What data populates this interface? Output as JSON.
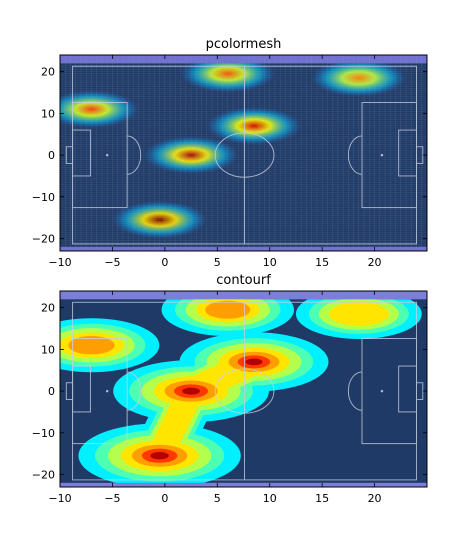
{
  "chart_data": [
    {
      "type": "heatmap",
      "title": "pcolormesh",
      "xlabel": "",
      "ylabel": "",
      "xlim": [
        -10,
        25
      ],
      "ylim": [
        -23,
        24
      ],
      "xticks": [
        -10,
        -5,
        0,
        5,
        10,
        15,
        20
      ],
      "yticks": [
        -20,
        -10,
        0,
        10,
        20
      ],
      "grid": false,
      "background_color": "#1f3a66",
      "outer_band_color": "#6f6fd0",
      "pitch_line_color": "#c8d0e0",
      "hotspots": [
        {
          "x": -0.5,
          "y": -15.5,
          "intensity": 1.0
        },
        {
          "x": 2.5,
          "y": 0.0,
          "intensity": 0.9
        },
        {
          "x": 8.5,
          "y": 7.0,
          "intensity": 0.8
        },
        {
          "x": 6.0,
          "y": 19.5,
          "intensity": 0.55
        },
        {
          "x": -7.0,
          "y": 11.0,
          "intensity": 0.6
        },
        {
          "x": 18.5,
          "y": 18.5,
          "intensity": 0.45
        }
      ]
    },
    {
      "type": "heatmap",
      "title": "contourf",
      "xlabel": "",
      "ylabel": "",
      "xlim": [
        -10,
        25
      ],
      "ylim": [
        -23,
        24
      ],
      "xticks": [
        -10,
        -5,
        0,
        5,
        10,
        15,
        20
      ],
      "yticks": [
        -20,
        -10,
        0,
        10,
        20
      ],
      "grid": false,
      "background_color": "#1f3a66",
      "outer_band_color": "#7b7fd8",
      "pitch_line_color": "#c8d0e0",
      "hotspots": [
        {
          "x": -0.5,
          "y": -15.5,
          "intensity": 1.0
        },
        {
          "x": 2.5,
          "y": 0.0,
          "intensity": 0.9
        },
        {
          "x": 8.5,
          "y": 7.0,
          "intensity": 0.8
        },
        {
          "x": 6.0,
          "y": 19.5,
          "intensity": 0.55
        },
        {
          "x": -7.0,
          "y": 11.0,
          "intensity": 0.6
        },
        {
          "x": 18.5,
          "y": 18.5,
          "intensity": 0.45
        }
      ]
    }
  ]
}
